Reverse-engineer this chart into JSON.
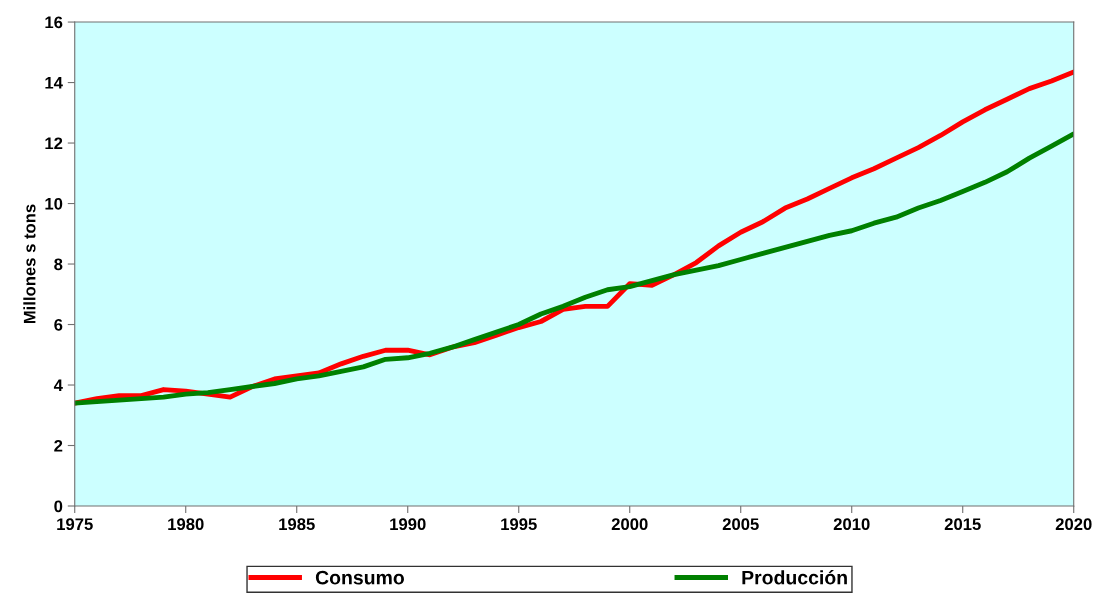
{
  "chart_data": {
    "type": "line",
    "ylabel": "Millones s tons",
    "x": [
      1975,
      1976,
      1977,
      1978,
      1979,
      1980,
      1981,
      1982,
      1983,
      1984,
      1985,
      1986,
      1987,
      1988,
      1989,
      1990,
      1991,
      1992,
      1993,
      1994,
      1995,
      1996,
      1997,
      1998,
      1999,
      2000,
      2001,
      2002,
      2003,
      2004,
      2005,
      2006,
      2007,
      2008,
      2009,
      2010,
      2011,
      2012,
      2013,
      2014,
      2015,
      2016,
      2017,
      2018,
      2019,
      2020
    ],
    "series": [
      {
        "name": "Consumo",
        "color": "#ff0000",
        "values": [
          3.4,
          3.55,
          3.65,
          3.65,
          3.85,
          3.8,
          3.7,
          3.6,
          3.95,
          4.2,
          4.3,
          4.4,
          4.7,
          4.95,
          5.15,
          5.15,
          5.0,
          5.25,
          5.4,
          5.65,
          5.9,
          6.1,
          6.5,
          6.6,
          6.6,
          7.35,
          7.3,
          7.65,
          8.05,
          8.6,
          9.05,
          9.4,
          9.85,
          10.15,
          10.5,
          10.85,
          11.15,
          11.5,
          11.85,
          12.25,
          12.7,
          13.1,
          13.45,
          13.8,
          14.05,
          14.35
        ]
      },
      {
        "name": "Producción",
        "color": "#008000",
        "values": [
          3.4,
          3.45,
          3.5,
          3.55,
          3.6,
          3.7,
          3.75,
          3.85,
          3.95,
          4.05,
          4.2,
          4.3,
          4.45,
          4.6,
          4.85,
          4.9,
          5.05,
          5.25,
          5.5,
          5.75,
          6.0,
          6.35,
          6.6,
          6.9,
          7.15,
          7.25,
          7.45,
          7.65,
          7.8,
          7.95,
          8.15,
          8.35,
          8.55,
          8.75,
          8.95,
          9.1,
          9.35,
          9.55,
          9.85,
          10.1,
          10.4,
          10.7,
          11.05,
          11.5,
          11.9,
          12.3
        ]
      }
    ],
    "xlim": [
      1975,
      2020
    ],
    "xticks": [
      1975,
      1980,
      1985,
      1990,
      1995,
      2000,
      2005,
      2010,
      2015,
      2020
    ],
    "ylim": [
      0,
      16
    ],
    "yticks": [
      0,
      2,
      4,
      6,
      8,
      10,
      12,
      14,
      16
    ],
    "grid": false,
    "legend": "bottom",
    "marker": "none",
    "line_style": "solid"
  }
}
